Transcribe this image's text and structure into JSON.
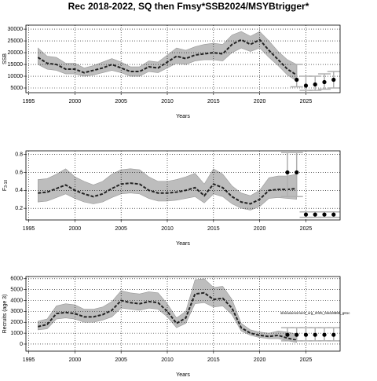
{
  "chart_data": [
    {
      "type": "band-line",
      "title": "Rec 2018-2022, SQ then Fmsy*SSB2024/MSYBtrigger*",
      "xlabel": "Years",
      "ylabel": "SSB",
      "band_color": "#bdbdbd",
      "line_color": "#222222",
      "point_color": "#000000",
      "errorbar_color": "#b0b0b0",
      "grid": true,
      "xlim": [
        1994.7,
        2028.7
      ],
      "xticks": [
        1995,
        2000,
        2005,
        2010,
        2015,
        2020,
        2025
      ],
      "ylim": [
        3000,
        31700
      ],
      "yticks": [
        5000,
        10000,
        15000,
        20000,
        25000,
        30000
      ],
      "x": [
        1996,
        1997,
        1998,
        1999,
        2000,
        2001,
        2002,
        2003,
        2004,
        2005,
        2006,
        2007,
        2008,
        2009,
        2010,
        2011,
        2012,
        2013,
        2014,
        2015,
        2016,
        2017,
        2018,
        2019,
        2020,
        2021,
        2022,
        2023,
        2024
      ],
      "median": [
        18000,
        15500,
        15000,
        13000,
        13000,
        11500,
        12500,
        13500,
        15000,
        13500,
        12000,
        12000,
        14000,
        13500,
        16000,
        18500,
        17500,
        19000,
        19500,
        20000,
        19500,
        23500,
        25500,
        23500,
        25500,
        21000,
        17000,
        13000,
        10500
      ],
      "lower": [
        15000,
        13000,
        12500,
        11000,
        11000,
        10000,
        10500,
        11500,
        12500,
        11500,
        10000,
        10000,
        12000,
        11500,
        13500,
        15500,
        15000,
        16500,
        17000,
        17000,
        16500,
        20000,
        22000,
        20500,
        22000,
        18000,
        14500,
        10500,
        8000
      ],
      "upper": [
        22000,
        18500,
        18000,
        15500,
        15500,
        13500,
        14500,
        16000,
        17500,
        16000,
        14000,
        14000,
        16500,
        16000,
        19000,
        22000,
        21000,
        22500,
        23500,
        24000,
        23500,
        27500,
        29000,
        27000,
        29000,
        25000,
        20500,
        17000,
        15000
      ],
      "proj_x": [
        2024,
        2025,
        2026,
        2027,
        2028
      ],
      "proj_values": [
        8500,
        6000,
        6500,
        7500,
        8500
      ],
      "proj_lower": [
        5500,
        4000,
        4000,
        4500,
        5000
      ],
      "proj_upper": [
        15000,
        10000,
        10000,
        11000,
        12000
      ]
    },
    {
      "type": "band-line",
      "xlabel": "Years",
      "ylabel": "F",
      "ylabel_sub": "3-10",
      "band_color": "#bdbdbd",
      "line_color": "#222222",
      "point_color": "#000000",
      "errorbar_color": "#b0b0b0",
      "grid": true,
      "xlim": [
        1994.7,
        2028.7
      ],
      "xticks": [
        1995,
        2000,
        2005,
        2010,
        2015,
        2020,
        2025
      ],
      "ylim": [
        0.07,
        0.84
      ],
      "yticks": [
        0.2,
        0.4,
        0.6,
        0.8
      ],
      "x": [
        1996,
        1997,
        1998,
        1999,
        2000,
        2001,
        2002,
        2003,
        2004,
        2005,
        2006,
        2007,
        2008,
        2009,
        2010,
        2011,
        2012,
        2013,
        2014,
        2015,
        2016,
        2017,
        2018,
        2019,
        2020,
        2021,
        2022,
        2023,
        2024
      ],
      "median": [
        0.37,
        0.38,
        0.42,
        0.46,
        0.4,
        0.36,
        0.33,
        0.36,
        0.42,
        0.47,
        0.48,
        0.47,
        0.4,
        0.37,
        0.37,
        0.38,
        0.4,
        0.43,
        0.34,
        0.47,
        0.43,
        0.33,
        0.27,
        0.25,
        0.3,
        0.4,
        0.41,
        0.41,
        0.42
      ],
      "lower": [
        0.27,
        0.28,
        0.32,
        0.36,
        0.31,
        0.27,
        0.25,
        0.27,
        0.32,
        0.36,
        0.37,
        0.36,
        0.31,
        0.28,
        0.28,
        0.29,
        0.31,
        0.33,
        0.26,
        0.36,
        0.33,
        0.25,
        0.2,
        0.18,
        0.22,
        0.31,
        0.32,
        0.31,
        0.3
      ],
      "upper": [
        0.52,
        0.53,
        0.58,
        0.64,
        0.55,
        0.5,
        0.46,
        0.5,
        0.58,
        0.63,
        0.64,
        0.63,
        0.55,
        0.5,
        0.5,
        0.52,
        0.55,
        0.59,
        0.47,
        0.64,
        0.58,
        0.45,
        0.37,
        0.34,
        0.4,
        0.54,
        0.56,
        0.56,
        0.58
      ],
      "proj_x": [
        2023,
        2024,
        2025,
        2026,
        2027,
        2028
      ],
      "proj_values": [
        0.6,
        0.6,
        0.13,
        0.13,
        0.13,
        0.13
      ],
      "proj_lower": [
        0.33,
        0.33,
        0.1,
        0.1,
        0.1,
        0.1
      ],
      "proj_upper": [
        0.82,
        0.82,
        0.16,
        0.16,
        0.16,
        0.16
      ]
    },
    {
      "type": "band-line",
      "xlabel": "Years",
      "ylabel": "Recruits (age 3)",
      "annotation": "sbs/assessment_org_2025_Mat18886_g61c",
      "band_color": "#bdbdbd",
      "line_color": "#222222",
      "point_color": "#000000",
      "errorbar_color": "#b0b0b0",
      "grid": true,
      "xlim": [
        1994.7,
        2028.7
      ],
      "xticks": [
        1995,
        2000,
        2005,
        2010,
        2015,
        2020,
        2025
      ],
      "ylim": [
        -650,
        6200
      ],
      "yticks": [
        0,
        1000,
        2000,
        3000,
        4000,
        5000,
        6000
      ],
      "x": [
        1996,
        1997,
        1998,
        1999,
        2000,
        2001,
        2002,
        2003,
        2004,
        2005,
        2006,
        2007,
        2008,
        2009,
        2010,
        2011,
        2012,
        2013,
        2014,
        2015,
        2016,
        2017,
        2018,
        2019,
        2020,
        2021,
        2022,
        2023,
        2024
      ],
      "median": [
        1600,
        1800,
        2800,
        2900,
        2800,
        2500,
        2500,
        2700,
        3100,
        4000,
        3800,
        3700,
        3900,
        3800,
        3000,
        1900,
        2400,
        4600,
        4700,
        4100,
        4200,
        3300,
        1500,
        1000,
        800,
        700,
        800,
        550,
        350
      ],
      "lower": [
        1300,
        1400,
        2300,
        2400,
        2300,
        2000,
        2000,
        2200,
        2500,
        3300,
        3200,
        3100,
        3300,
        3200,
        2500,
        1500,
        1900,
        3700,
        3800,
        3400,
        3500,
        2700,
        1200,
        800,
        600,
        500,
        500,
        300,
        150
      ],
      "upper": [
        2100,
        2300,
        3500,
        3700,
        3600,
        3200,
        3200,
        3400,
        3900,
        4900,
        4700,
        4600,
        4800,
        4700,
        3700,
        2400,
        3000,
        5900,
        6000,
        5200,
        5300,
        4100,
        1900,
        1300,
        1100,
        1000,
        1200,
        1100,
        900
      ],
      "proj_x": [
        2023,
        2024,
        2025,
        2026,
        2027,
        2028
      ],
      "proj_values": [
        850,
        850,
        850,
        850,
        850,
        850
      ],
      "proj_lower": [
        300,
        300,
        300,
        300,
        300,
        300
      ],
      "proj_upper": [
        1500,
        1500,
        1500,
        1500,
        1500,
        1500
      ]
    }
  ]
}
